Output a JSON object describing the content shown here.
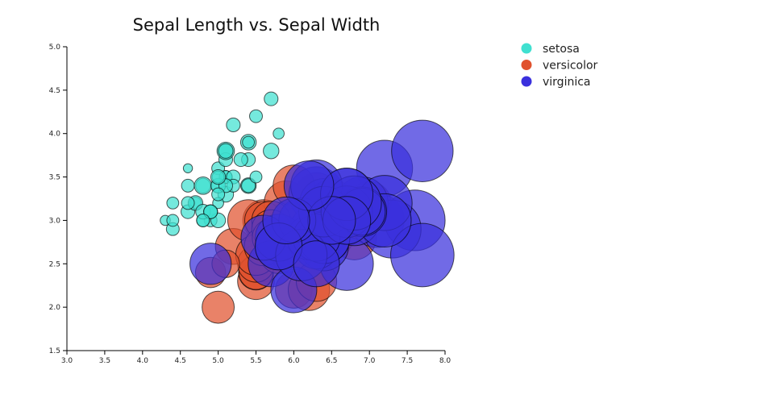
{
  "chart_data": {
    "type": "scatter",
    "title": "Sepal Length vs. Sepal Width",
    "xlabel": "",
    "ylabel": "",
    "xlim": [
      3.0,
      8.0
    ],
    "ylim": [
      1.5,
      5.0
    ],
    "xticks": [
      "3.0",
      "3.5",
      "4.0",
      "4.5",
      "5.0",
      "5.5",
      "6.0",
      "6.5",
      "7.0",
      "7.5",
      "8.0"
    ],
    "yticks": [
      "1.5",
      "2.0",
      "2.5",
      "3.0",
      "3.5",
      "4.0",
      "4.5",
      "5.0"
    ],
    "grid": false,
    "legend_position": "top-right",
    "point_fields": [
      "sepal_length",
      "sepal_width",
      "petal_length (bubble size)"
    ],
    "series": [
      {
        "name": "setosa",
        "color": "#40E0D0",
        "points": [
          [
            5.1,
            3.5,
            1.4
          ],
          [
            4.9,
            3.0,
            1.4
          ],
          [
            4.7,
            3.2,
            1.3
          ],
          [
            4.6,
            3.1,
            1.5
          ],
          [
            5.0,
            3.6,
            1.4
          ],
          [
            5.4,
            3.9,
            1.7
          ],
          [
            4.6,
            3.4,
            1.4
          ],
          [
            5.0,
            3.4,
            1.5
          ],
          [
            4.4,
            2.9,
            1.4
          ],
          [
            4.9,
            3.1,
            1.5
          ],
          [
            5.4,
            3.7,
            1.5
          ],
          [
            4.8,
            3.4,
            1.6
          ],
          [
            4.8,
            3.0,
            1.4
          ],
          [
            4.3,
            3.0,
            1.1
          ],
          [
            5.8,
            4.0,
            1.2
          ],
          [
            5.7,
            4.4,
            1.5
          ],
          [
            5.4,
            3.9,
            1.3
          ],
          [
            5.1,
            3.5,
            1.4
          ],
          [
            5.7,
            3.8,
            1.7
          ],
          [
            5.1,
            3.8,
            1.5
          ],
          [
            5.4,
            3.4,
            1.7
          ],
          [
            5.1,
            3.7,
            1.5
          ],
          [
            4.6,
            3.6,
            1.0
          ],
          [
            5.1,
            3.3,
            1.7
          ],
          [
            4.8,
            3.4,
            1.9
          ],
          [
            5.0,
            3.0,
            1.6
          ],
          [
            5.0,
            3.4,
            1.6
          ],
          [
            5.2,
            3.5,
            1.5
          ],
          [
            5.2,
            3.4,
            1.4
          ],
          [
            4.7,
            3.2,
            1.6
          ],
          [
            4.8,
            3.1,
            1.6
          ],
          [
            5.4,
            3.4,
            1.5
          ],
          [
            5.2,
            4.1,
            1.5
          ],
          [
            5.5,
            4.2,
            1.4
          ],
          [
            4.9,
            3.1,
            1.5
          ],
          [
            5.0,
            3.2,
            1.2
          ],
          [
            5.5,
            3.5,
            1.3
          ],
          [
            4.9,
            3.1,
            1.5
          ],
          [
            4.4,
            3.0,
            1.3
          ],
          [
            5.1,
            3.4,
            1.5
          ],
          [
            5.0,
            3.5,
            1.3
          ],
          [
            4.4,
            3.2,
            1.3
          ],
          [
            5.0,
            3.5,
            1.6
          ],
          [
            5.1,
            3.8,
            1.9
          ],
          [
            4.8,
            3.0,
            1.4
          ],
          [
            5.1,
            3.8,
            1.6
          ],
          [
            4.6,
            3.2,
            1.4
          ],
          [
            5.3,
            3.7,
            1.5
          ],
          [
            5.0,
            3.3,
            1.4
          ]
        ]
      },
      {
        "name": "versicolor",
        "color": "#E0522E",
        "points": [
          [
            7.0,
            3.2,
            4.7
          ],
          [
            6.4,
            3.2,
            4.5
          ],
          [
            6.9,
            3.1,
            4.9
          ],
          [
            5.5,
            2.3,
            4.0
          ],
          [
            6.5,
            2.8,
            4.6
          ],
          [
            5.7,
            2.8,
            4.5
          ],
          [
            6.3,
            3.3,
            4.7
          ],
          [
            4.9,
            2.4,
            3.3
          ],
          [
            6.6,
            2.9,
            4.6
          ],
          [
            5.2,
            2.7,
            3.9
          ],
          [
            5.0,
            2.0,
            3.5
          ],
          [
            5.9,
            3.0,
            4.2
          ],
          [
            6.0,
            2.2,
            4.0
          ],
          [
            6.1,
            2.9,
            4.7
          ],
          [
            5.6,
            2.9,
            3.6
          ],
          [
            6.7,
            3.1,
            4.4
          ],
          [
            5.6,
            3.0,
            4.5
          ],
          [
            5.8,
            2.7,
            4.1
          ],
          [
            6.2,
            2.2,
            4.5
          ],
          [
            5.6,
            2.5,
            3.9
          ],
          [
            5.9,
            3.2,
            4.8
          ],
          [
            6.1,
            2.8,
            4.0
          ],
          [
            6.3,
            2.5,
            4.9
          ],
          [
            6.1,
            2.8,
            4.7
          ],
          [
            6.4,
            2.9,
            4.3
          ],
          [
            6.6,
            3.0,
            4.4
          ],
          [
            6.8,
            2.8,
            4.8
          ],
          [
            6.7,
            3.0,
            5.0
          ],
          [
            6.0,
            2.9,
            4.5
          ],
          [
            5.7,
            2.6,
            3.5
          ],
          [
            5.5,
            2.4,
            3.8
          ],
          [
            5.5,
            2.4,
            3.7
          ],
          [
            5.8,
            2.7,
            3.9
          ],
          [
            6.0,
            2.7,
            5.1
          ],
          [
            5.4,
            3.0,
            4.5
          ],
          [
            6.0,
            3.4,
            4.5
          ],
          [
            6.7,
            3.1,
            4.7
          ],
          [
            6.3,
            2.3,
            4.4
          ],
          [
            5.6,
            3.0,
            4.1
          ],
          [
            5.5,
            2.5,
            4.0
          ],
          [
            5.5,
            2.6,
            4.4
          ],
          [
            6.1,
            3.0,
            4.6
          ],
          [
            5.8,
            2.6,
            4.0
          ],
          [
            5.6,
            2.7,
            4.2
          ],
          [
            5.7,
            3.0,
            4.2
          ],
          [
            5.7,
            2.9,
            4.2
          ],
          [
            6.2,
            2.9,
            4.3
          ],
          [
            5.1,
            2.5,
            3.0
          ],
          [
            5.7,
            2.8,
            4.1
          ]
        ]
      },
      {
        "name": "virginica",
        "color": "#3A30DD",
        "points": [
          [
            6.3,
            3.3,
            6.0
          ],
          [
            5.8,
            2.7,
            5.1
          ],
          [
            7.1,
            3.0,
            5.9
          ],
          [
            6.3,
            2.9,
            5.6
          ],
          [
            6.5,
            3.0,
            5.8
          ],
          [
            7.6,
            3.0,
            6.6
          ],
          [
            4.9,
            2.5,
            4.5
          ],
          [
            7.3,
            2.9,
            6.3
          ],
          [
            6.7,
            2.5,
            5.8
          ],
          [
            7.2,
            3.6,
            6.1
          ],
          [
            6.5,
            3.2,
            5.1
          ],
          [
            6.4,
            2.7,
            5.3
          ],
          [
            6.8,
            3.0,
            5.5
          ],
          [
            5.7,
            2.5,
            5.0
          ],
          [
            5.8,
            2.8,
            5.1
          ],
          [
            6.4,
            3.2,
            5.3
          ],
          [
            6.5,
            3.0,
            5.5
          ],
          [
            7.7,
            3.8,
            6.7
          ],
          [
            7.7,
            2.6,
            6.9
          ],
          [
            6.0,
            2.2,
            5.0
          ],
          [
            6.9,
            3.2,
            5.7
          ],
          [
            5.6,
            2.8,
            4.9
          ],
          [
            6.3,
            2.7,
            4.9
          ],
          [
            6.7,
            3.3,
            5.7
          ],
          [
            7.2,
            3.2,
            6.0
          ],
          [
            6.2,
            2.8,
            4.8
          ],
          [
            6.1,
            3.0,
            4.9
          ],
          [
            6.4,
            2.8,
            5.6
          ],
          [
            7.2,
            3.0,
            5.8
          ],
          [
            6.4,
            2.8,
            5.6
          ],
          [
            6.3,
            2.8,
            5.1
          ],
          [
            6.1,
            2.6,
            5.6
          ],
          [
            6.3,
            3.4,
            5.6
          ],
          [
            6.4,
            3.1,
            5.5
          ],
          [
            6.0,
            3.0,
            4.8
          ],
          [
            6.9,
            3.1,
            5.4
          ],
          [
            6.7,
            3.1,
            5.6
          ],
          [
            6.9,
            3.1,
            5.1
          ],
          [
            5.8,
            2.7,
            5.1
          ],
          [
            6.8,
            3.2,
            5.9
          ],
          [
            6.7,
            3.3,
            5.7
          ],
          [
            6.7,
            3.0,
            5.2
          ],
          [
            6.3,
            2.5,
            5.0
          ],
          [
            6.5,
            3.0,
            5.2
          ],
          [
            6.2,
            3.4,
            5.4
          ],
          [
            5.9,
            3.0,
            5.1
          ]
        ]
      }
    ]
  }
}
